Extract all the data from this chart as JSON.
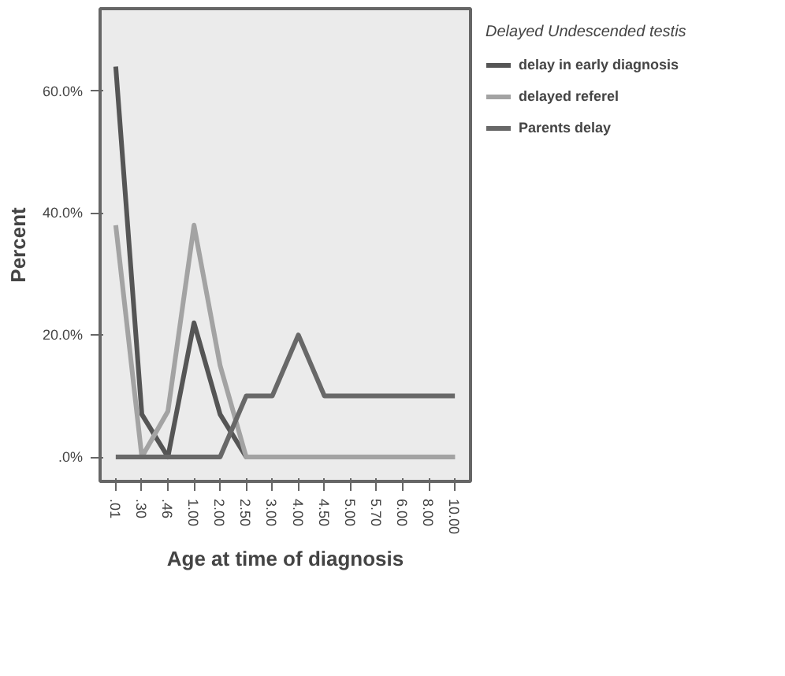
{
  "chart_data": {
    "type": "line",
    "xlabel": "Age at time of diagnosis",
    "ylabel": "Percent",
    "legend_title": "Delayed Undescended testis",
    "categories": [
      ".01",
      ".30",
      ".46",
      "1.00",
      "2.00",
      "2.50",
      "3.00",
      "4.00",
      "4.50",
      "5.00",
      "5.70",
      "6.00",
      "8.00",
      "10.00"
    ],
    "series": [
      {
        "name": "delay in early diagnosis",
        "color": "#555555",
        "values": [
          64,
          7,
          0,
          22,
          7,
          0,
          0,
          0,
          0,
          0,
          0,
          0,
          0,
          0
        ]
      },
      {
        "name": "delayed referel",
        "color": "#a3a3a3",
        "values": [
          38,
          0,
          7.5,
          38,
          15,
          0,
          0,
          0,
          0,
          0,
          0,
          0,
          0,
          0
        ]
      },
      {
        "name": "Parents delay",
        "color": "#686868",
        "values": [
          0,
          0,
          0,
          0,
          0,
          10,
          10,
          20,
          10,
          10,
          10,
          10,
          10,
          10
        ]
      }
    ],
    "ylim": [
      -4,
      73.5
    ],
    "yticks": [
      {
        "value": 0,
        "label": ".0%"
      },
      {
        "value": 20,
        "label": "20.0%"
      },
      {
        "value": 40,
        "label": "40.0%"
      },
      {
        "value": 60,
        "label": "60.0%"
      }
    ],
    "grid": false,
    "legend": "right",
    "marker": "none",
    "line_style": "solid"
  }
}
